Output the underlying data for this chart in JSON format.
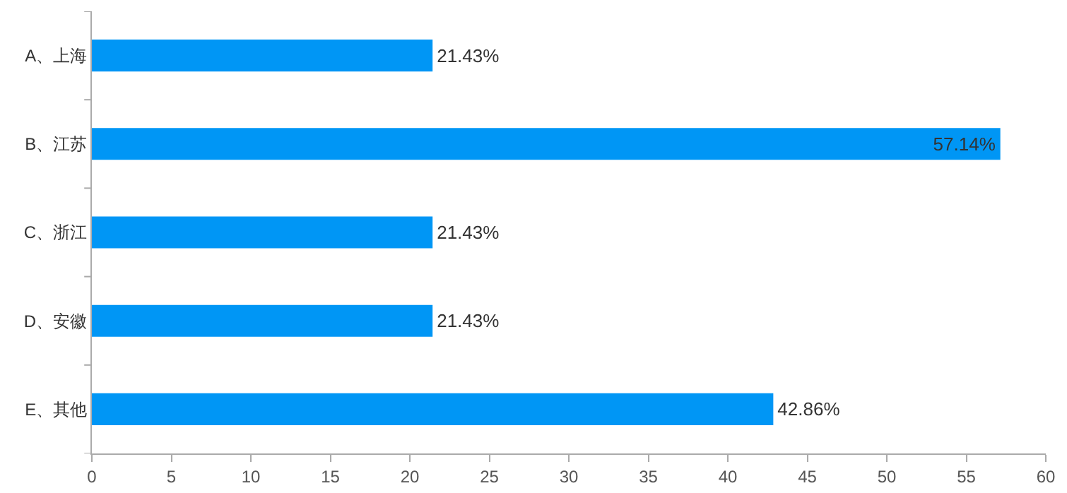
{
  "chart_data": {
    "type": "bar",
    "orientation": "horizontal",
    "categories": [
      "A、上海",
      "B、江苏",
      "C、浙江",
      "D、安徽",
      "E、其他"
    ],
    "values": [
      21.43,
      57.14,
      21.43,
      21.43,
      42.86
    ],
    "value_labels": [
      "21.43%",
      "57.14%",
      "21.43%",
      "21.43%",
      "42.86%"
    ],
    "color": "#0096f5",
    "xlim": [
      0,
      60
    ],
    "xticks": [
      0,
      5,
      10,
      15,
      20,
      25,
      30,
      35,
      40,
      45,
      50,
      55,
      60
    ],
    "grid": false
  }
}
